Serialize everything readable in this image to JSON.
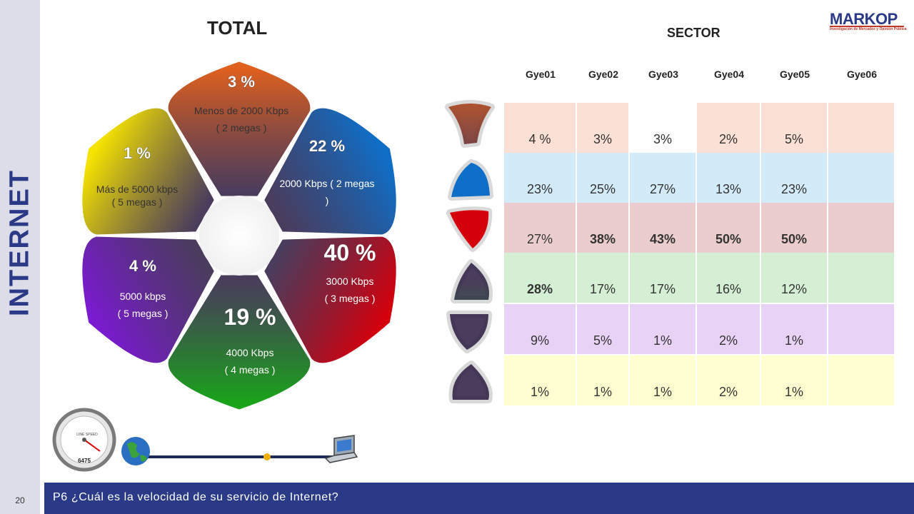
{
  "side_title": "INTERNET",
  "page_number": "20",
  "question": "P6 ¿Cuál es la velocidad de su servicio de Internet?",
  "brand": {
    "name": "MARKOP",
    "tagline": "Investigación de Mercados y Opinión Pública"
  },
  "total_title": "TOTAL",
  "sector_title": "SECTOR",
  "chart_data": [
    {
      "type": "pie",
      "title": "TOTAL",
      "slices": [
        {
          "label": "3 %",
          "value": 3,
          "desc1": "Menos de 2000 Kbps",
          "desc2": "( 2 megas )",
          "color": "#e0601e"
        },
        {
          "label": "22 %",
          "value": 22,
          "desc1": "2000 Kbps  ( 2 megas",
          "desc2": ")",
          "color": "#0f6fc8"
        },
        {
          "label": "40 %",
          "value": 40,
          "desc1": "3000 Kbps",
          "desc2": "( 3 megas )",
          "color": "#d4000c"
        },
        {
          "label": "19 %",
          "value": 19,
          "desc1": "4000 Kbps",
          "desc2": "( 4 megas )",
          "color": "#1aa41a"
        },
        {
          "label": "4 %",
          "value": 4,
          "desc1": "5000 kbps",
          "desc2": "( 5 megas )",
          "color": "#7a1bd0"
        },
        {
          "label": "1 %",
          "value": 1,
          "desc1": "Más de 5000 kbps",
          "desc2": "( 5 megas )",
          "color": "#f5e300"
        }
      ]
    },
    {
      "type": "table",
      "title": "SECTOR",
      "columns": [
        "Gye01",
        "Gye02",
        "Gye03",
        "Gye04",
        "Gye05",
        "Gye06"
      ],
      "row_colors": [
        "#fbe0d6",
        "#d3eaf8",
        "#eccdcd",
        "#d4efd4",
        "#e8d3f6",
        "#fefed0"
      ],
      "rows": [
        [
          "4 %",
          "3%",
          "3%",
          "2%",
          "5%",
          ""
        ],
        [
          "23%",
          "25%",
          "27%",
          "13%",
          "23%",
          ""
        ],
        [
          "27%",
          "38%",
          "43%",
          "50%",
          "50%",
          ""
        ],
        [
          "28%",
          "17%",
          "17%",
          "16%",
          "12%",
          ""
        ],
        [
          "9%",
          "5%",
          "1%",
          "2%",
          "1%",
          ""
        ],
        [
          "1%",
          "1%",
          "1%",
          "2%",
          "1%",
          ""
        ]
      ],
      "bold": [
        [],
        [],
        [
          1,
          2,
          3,
          4
        ],
        [
          0
        ],
        [],
        []
      ]
    }
  ],
  "speedometer": {
    "reading": "6475",
    "brand": "LINE SPEED"
  }
}
